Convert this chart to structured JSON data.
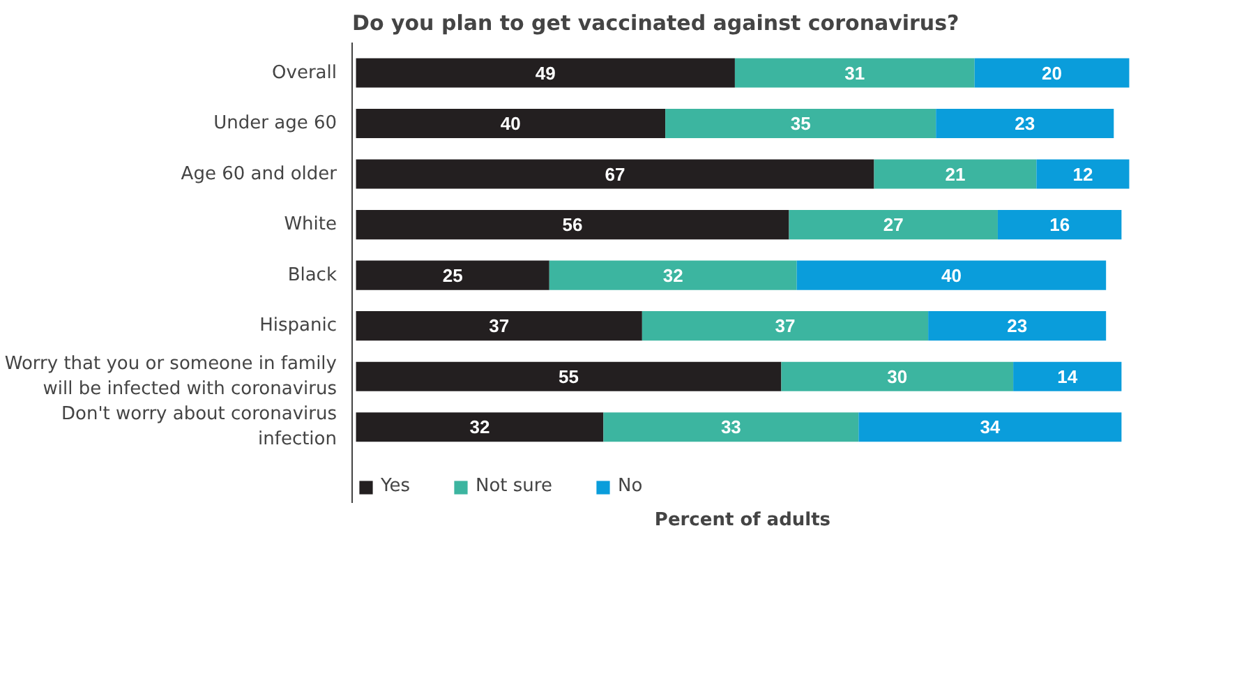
{
  "chart_data": {
    "type": "bar",
    "title": "Do you plan to get vaccinated against coronavirus?",
    "xlabel": "Percent of adults",
    "orientation": "horizontal",
    "stacked": true,
    "data_labels": true,
    "legend": "bottom left",
    "tick_labels": "y",
    "categories": [
      "Overall",
      "Under age 60",
      "Age 60 and older",
      "White",
      "Black",
      "Hispanic",
      "Worry that you or someone in family will be infected with coronavirus",
      "Don't worry about coronavirus infection"
    ],
    "series": [
      {
        "name": "Yes",
        "color": "#231f20",
        "values": [
          49,
          40,
          67,
          56,
          25,
          37,
          55,
          32
        ]
      },
      {
        "name": "Not sure",
        "color": "#3cb5a0",
        "values": [
          31,
          35,
          21,
          27,
          32,
          37,
          30,
          33
        ]
      },
      {
        "name": "No",
        "color": "#0a9ddb",
        "values": [
          20,
          23,
          12,
          16,
          40,
          23,
          14,
          34
        ]
      }
    ]
  }
}
